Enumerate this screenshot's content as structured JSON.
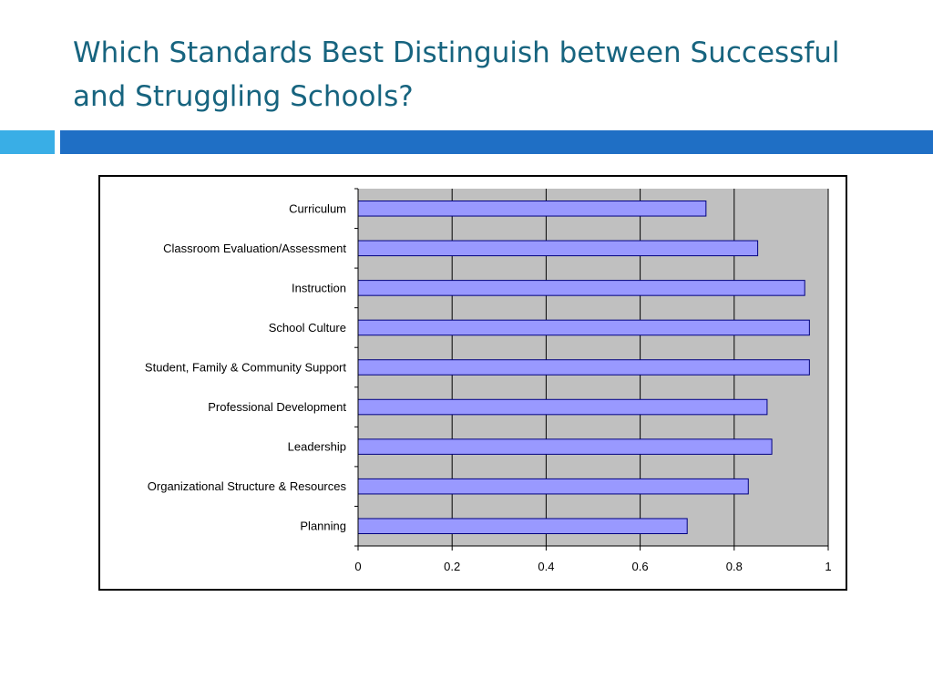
{
  "slide": {
    "title_line1": "Which Standards Best Distinguish between Successful",
    "title_line2": "and Struggling Schools?"
  },
  "colors": {
    "title": "#17647f",
    "accent_light": "#39aee6",
    "accent_dark": "#1f6fc5",
    "plot_background": "#c0c0c0",
    "bar_fill": "#9999ff",
    "bar_stroke": "#000080"
  },
  "chart_data": {
    "type": "bar",
    "orientation": "horizontal",
    "title": "",
    "xlabel": "",
    "ylabel": "",
    "categories": [
      "Curriculum",
      "Classroom Evaluation/Assessment",
      "Instruction",
      "School Culture",
      "Student, Family & Community Support",
      "Professional Development",
      "Leadership",
      "Organizational Structure & Resources",
      "Planning"
    ],
    "values": [
      0.74,
      0.85,
      0.95,
      0.96,
      0.96,
      0.87,
      0.88,
      0.83,
      0.7
    ],
    "xlim": [
      0,
      1
    ],
    "xticks": [
      0,
      0.2,
      0.4,
      0.6,
      0.8,
      1
    ],
    "xtick_labels": [
      "0",
      "0.2",
      "0.4",
      "0.6",
      "0.8",
      "1"
    ],
    "grid": "vertical",
    "legend": "none"
  }
}
